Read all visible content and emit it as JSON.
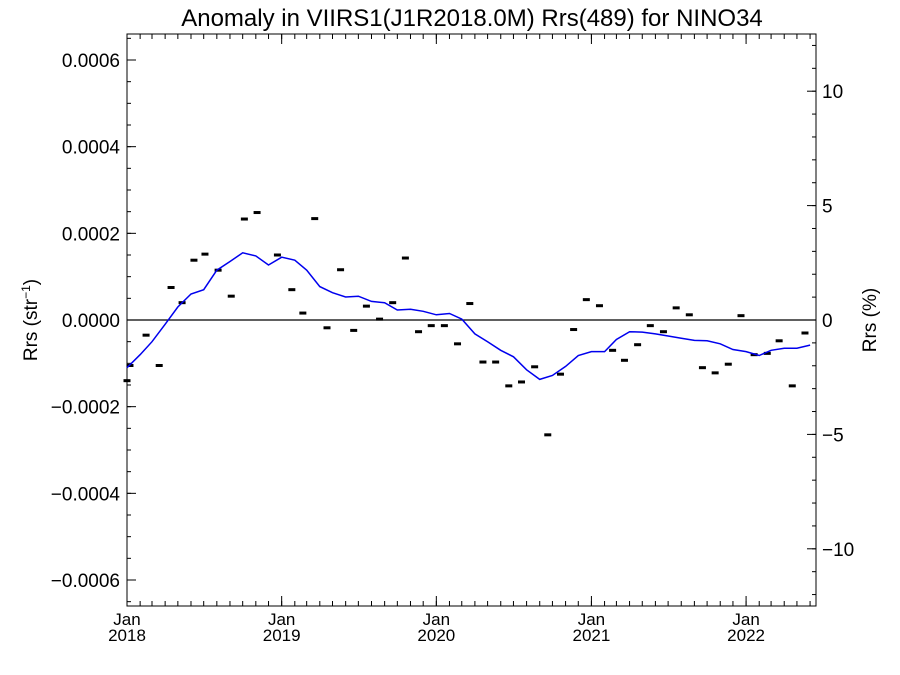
{
  "chart_data": {
    "type": "line",
    "title": "Anomaly in VIIRS1(J1R2018.0M) Rrs(489) for NINO34",
    "ylabel_left_text": "Rrs (str",
    "ylabel_left_sup": "−1",
    "ylabel_left_close": ")",
    "ylabel_right": "Rrs (%)",
    "xlabel": "",
    "x_range": [
      "2018-01-01",
      "2022-06-15"
    ],
    "y_left_range": [
      -0.00066,
      0.00066
    ],
    "y_right_range": [
      -12.5,
      12.5
    ],
    "y_left_ticks": [
      {
        "value": 0.0006,
        "label": "0.0006"
      },
      {
        "value": 0.0004,
        "label": "0.0004"
      },
      {
        "value": 0.0002,
        "label": "0.0002"
      },
      {
        "value": 0.0,
        "label": "0.0000"
      },
      {
        "value": -0.0002,
        "label": "−0.0002"
      },
      {
        "value": -0.0004,
        "label": "−0.0004"
      },
      {
        "value": -0.0006,
        "label": "−0.0006"
      }
    ],
    "y_right_ticks": [
      {
        "value": 10,
        "label": "10"
      },
      {
        "value": 5,
        "label": "5"
      },
      {
        "value": 0,
        "label": "0"
      },
      {
        "value": -5,
        "label": "−5"
      },
      {
        "value": -10,
        "label": "−10"
      }
    ],
    "x_ticks": [
      {
        "date": "2018-01-01",
        "month": "Jan",
        "year": "2018"
      },
      {
        "date": "2019-01-01",
        "month": "Jan",
        "year": "2019"
      },
      {
        "date": "2020-01-01",
        "month": "Jan",
        "year": "2020"
      },
      {
        "date": "2021-01-01",
        "month": "Jan",
        "year": "2021"
      },
      {
        "date": "2022-01-01",
        "month": "Jan",
        "year": "2022"
      }
    ],
    "zero_line": 0,
    "series": [
      {
        "style": "marker-dash",
        "color": "#000000",
        "points": [
          [
            "2018-01-01",
            -0.00014
          ],
          [
            "2018-01-08",
            -0.000105
          ],
          [
            "2018-02-15",
            -3.5e-05
          ],
          [
            "2018-03-18",
            -0.000105
          ],
          [
            "2018-04-15",
            7.5e-05
          ],
          [
            "2018-05-11",
            4e-05
          ],
          [
            "2018-06-08",
            0.000138
          ],
          [
            "2018-07-04",
            0.000152
          ],
          [
            "2018-08-04",
            0.000115
          ],
          [
            "2018-09-04",
            5.5e-05
          ],
          [
            "2018-10-05",
            0.000233
          ],
          [
            "2018-11-04",
            0.000248
          ],
          [
            "2018-12-22",
            0.00015
          ],
          [
            "2019-01-25",
            7e-05
          ],
          [
            "2019-02-20",
            1.6e-05
          ],
          [
            "2019-03-20",
            0.000234
          ],
          [
            "2019-04-18",
            -1.8e-05
          ],
          [
            "2019-05-20",
            0.000116
          ],
          [
            "2019-06-20",
            -2.4e-05
          ],
          [
            "2019-07-20",
            3.2e-05
          ],
          [
            "2019-08-20",
            2e-06
          ],
          [
            "2019-09-20",
            4e-05
          ],
          [
            "2019-10-20",
            0.000143
          ],
          [
            "2019-11-20",
            -2.7e-05
          ],
          [
            "2019-12-20",
            -1.3e-05
          ],
          [
            "2020-01-20",
            -1.3e-05
          ],
          [
            "2020-02-20",
            -5.5e-05
          ],
          [
            "2020-03-20",
            3.8e-05
          ],
          [
            "2020-04-20",
            -9.7e-05
          ],
          [
            "2020-05-20",
            -9.7e-05
          ],
          [
            "2020-06-20",
            -0.000152
          ],
          [
            "2020-07-20",
            -0.000143
          ],
          [
            "2020-08-20",
            -0.000108
          ],
          [
            "2020-09-20",
            -0.000265
          ],
          [
            "2020-10-20",
            -0.000125
          ],
          [
            "2020-11-20",
            -2.2e-05
          ],
          [
            "2020-12-20",
            4.7e-05
          ],
          [
            "2021-01-20",
            3.3e-05
          ],
          [
            "2021-02-20",
            -7e-05
          ],
          [
            "2021-03-20",
            -9.3e-05
          ],
          [
            "2021-04-20",
            -5.7e-05
          ],
          [
            "2021-05-20",
            -1.3e-05
          ],
          [
            "2021-06-20",
            -2.7e-05
          ],
          [
            "2021-07-20",
            2.8e-05
          ],
          [
            "2021-08-20",
            1.2e-05
          ],
          [
            "2021-09-20",
            -0.00011
          ],
          [
            "2021-10-20",
            -0.000122
          ],
          [
            "2021-11-20",
            -0.000102
          ],
          [
            "2021-12-20",
            1e-05
          ],
          [
            "2022-01-20",
            -8e-05
          ],
          [
            "2022-02-20",
            -7.7e-05
          ],
          [
            "2022-03-20",
            -4.8e-05
          ],
          [
            "2022-04-20",
            -0.000152
          ],
          [
            "2022-05-20",
            -3e-05
          ]
        ]
      },
      {
        "style": "line",
        "color": "#0000ee",
        "points": [
          [
            "2018-01-01",
            -0.00011
          ],
          [
            "2018-02-01",
            -8e-05
          ],
          [
            "2018-03-01",
            -5e-05
          ],
          [
            "2018-04-01",
            -1e-05
          ],
          [
            "2018-05-01",
            3e-05
          ],
          [
            "2018-06-01",
            6e-05
          ],
          [
            "2018-07-01",
            7e-05
          ],
          [
            "2018-08-01",
            0.000115
          ],
          [
            "2018-09-01",
            0.000135
          ],
          [
            "2018-10-01",
            0.000155
          ],
          [
            "2018-11-01",
            0.000148
          ],
          [
            "2018-12-01",
            0.000127
          ],
          [
            "2019-01-01",
            0.000145
          ],
          [
            "2019-02-01",
            0.000138
          ],
          [
            "2019-03-01",
            0.000115
          ],
          [
            "2019-04-01",
            7.7e-05
          ],
          [
            "2019-05-01",
            6.3e-05
          ],
          [
            "2019-06-01",
            5.3e-05
          ],
          [
            "2019-07-01",
            5.5e-05
          ],
          [
            "2019-08-01",
            4.3e-05
          ],
          [
            "2019-09-01",
            4e-05
          ],
          [
            "2019-10-01",
            2.3e-05
          ],
          [
            "2019-11-01",
            2.5e-05
          ],
          [
            "2019-12-01",
            2e-05
          ],
          [
            "2020-01-01",
            1.2e-05
          ],
          [
            "2020-02-01",
            1.5e-05
          ],
          [
            "2020-03-01",
            2e-06
          ],
          [
            "2020-04-01",
            -3.2e-05
          ],
          [
            "2020-05-01",
            -5e-05
          ],
          [
            "2020-06-01",
            -7e-05
          ],
          [
            "2020-07-01",
            -8.5e-05
          ],
          [
            "2020-08-01",
            -0.000115
          ],
          [
            "2020-09-01",
            -0.000137
          ],
          [
            "2020-10-01",
            -0.000128
          ],
          [
            "2020-11-01",
            -0.000107
          ],
          [
            "2020-12-01",
            -8.2e-05
          ],
          [
            "2021-01-01",
            -7.3e-05
          ],
          [
            "2021-02-01",
            -7.3e-05
          ],
          [
            "2021-03-01",
            -4.5e-05
          ],
          [
            "2021-04-01",
            -2.7e-05
          ],
          [
            "2021-05-01",
            -2.8e-05
          ],
          [
            "2021-06-01",
            -3.2e-05
          ],
          [
            "2021-07-01",
            -3.7e-05
          ],
          [
            "2021-08-01",
            -4.2e-05
          ],
          [
            "2021-09-01",
            -4.7e-05
          ],
          [
            "2021-10-01",
            -4.8e-05
          ],
          [
            "2021-11-01",
            -5.5e-05
          ],
          [
            "2021-12-01",
            -6.8e-05
          ],
          [
            "2022-01-01",
            -7.3e-05
          ],
          [
            "2022-02-01",
            -8.2e-05
          ],
          [
            "2022-03-01",
            -7e-05
          ],
          [
            "2022-04-01",
            -6.5e-05
          ],
          [
            "2022-05-01",
            -6.5e-05
          ],
          [
            "2022-06-01",
            -5.8e-05
          ]
        ]
      }
    ]
  }
}
